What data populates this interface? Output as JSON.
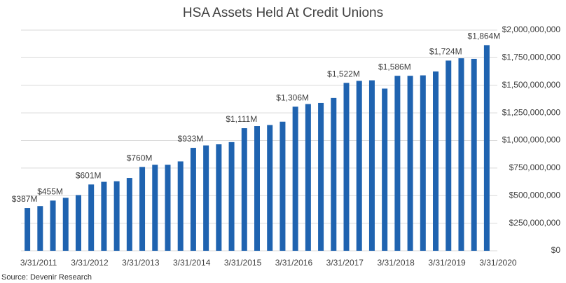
{
  "chart_data": {
    "type": "bar",
    "title": "HSA Assets Held At Credit Unions",
    "source": "Source: Devenir Research",
    "categories": [
      "3/31/2011",
      null,
      null,
      null,
      "3/31/2012",
      null,
      null,
      null,
      "3/31/2013",
      null,
      null,
      null,
      "3/31/2014",
      null,
      null,
      null,
      "3/31/2015",
      null,
      null,
      null,
      "3/31/2016",
      null,
      null,
      null,
      "3/31/2017",
      null,
      null,
      null,
      "3/31/2018",
      null,
      null,
      null,
      "3/31/2019",
      null,
      null,
      null,
      "3/31/2020"
    ],
    "values": [
      387000000,
      405000000,
      455000000,
      480000000,
      505000000,
      601000000,
      625000000,
      630000000,
      660000000,
      760000000,
      780000000,
      780000000,
      810000000,
      933000000,
      955000000,
      965000000,
      985000000,
      1111000000,
      1130000000,
      1140000000,
      1170000000,
      1306000000,
      1330000000,
      1340000000,
      1385000000,
      1522000000,
      1540000000,
      1545000000,
      1470000000,
      1586000000,
      1586000000,
      1590000000,
      1625000000,
      1724000000,
      1745000000,
      1740000000,
      1864000000
    ],
    "value_labels": [
      "$387M",
      null,
      "$455M",
      null,
      null,
      "$601M",
      null,
      null,
      null,
      "$760M",
      null,
      null,
      null,
      "$933M",
      null,
      null,
      null,
      "$1,111M",
      null,
      null,
      null,
      "$1,306M",
      null,
      null,
      null,
      "$1,522M",
      null,
      null,
      null,
      "$1,586M",
      null,
      null,
      null,
      "$1,724M",
      null,
      null,
      "$1,864M"
    ],
    "color": "#1f63b0",
    "ylim": [
      0,
      2000000000
    ],
    "yticks": [
      {
        "value": 0,
        "label": "$0"
      },
      {
        "value": 250000000,
        "label": "$250,000,000"
      },
      {
        "value": 500000000,
        "label": "$500,000,000"
      },
      {
        "value": 750000000,
        "label": "$750,000,000"
      },
      {
        "value": 1000000000,
        "label": "$1,000,000,000"
      },
      {
        "value": 1250000000,
        "label": "$1,250,000,000"
      },
      {
        "value": 1500000000,
        "label": "$1,500,000,000"
      },
      {
        "value": 1750000000,
        "label": "$1,750,000,000"
      },
      {
        "value": 2000000000,
        "label": "$2,000,000,000"
      }
    ],
    "grid": true
  }
}
